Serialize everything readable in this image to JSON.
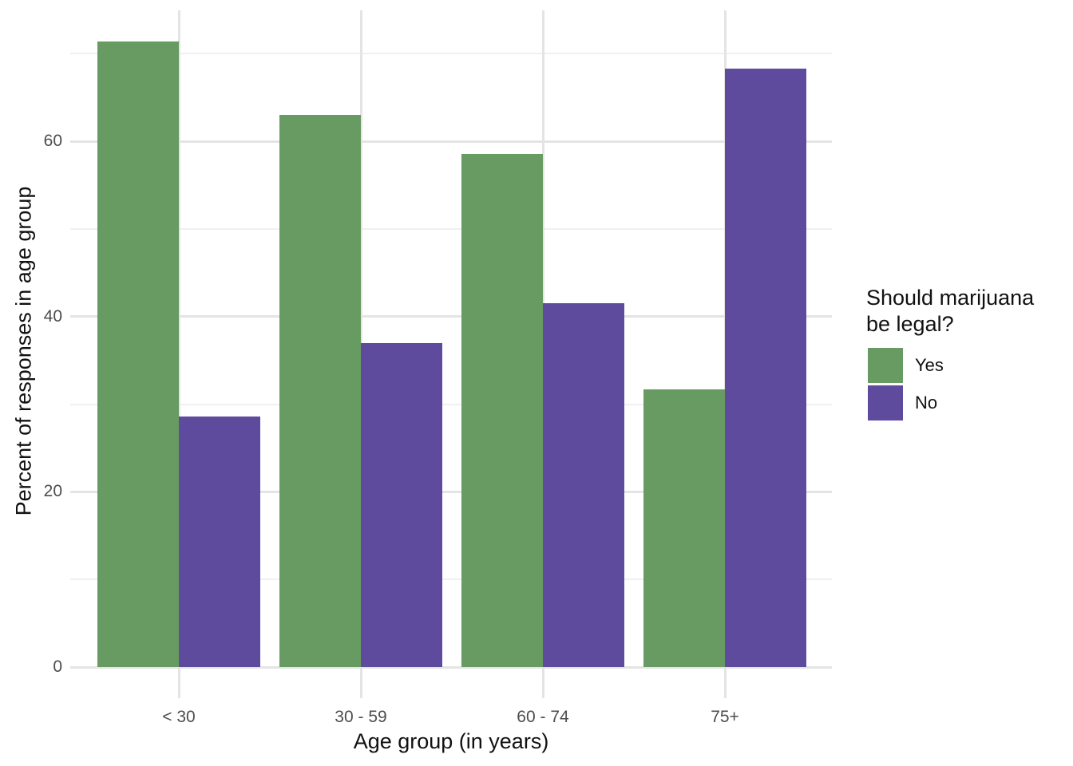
{
  "figure": {
    "background": "#ffffff",
    "legend": {
      "title_line1": "Should marijuana",
      "title_line2": "be legal?"
    }
  },
  "chart_data": {
    "type": "bar",
    "bar_grouping": "dodged",
    "title": "",
    "xlabel": "Age group (in years)",
    "ylabel": "Percent of responses in age group",
    "categories": [
      "< 30",
      "30 - 59",
      "60 - 74",
      "75+"
    ],
    "series": [
      {
        "name": "Yes",
        "color": "#689b62",
        "values": [
          71.4,
          63.0,
          58.5,
          31.7
        ]
      },
      {
        "name": "No",
        "color": "#5f4b9e",
        "values": [
          28.6,
          37.0,
          41.5,
          68.3
        ]
      }
    ],
    "ylim": [
      0,
      75
    ],
    "y_major_ticks": [
      0,
      20,
      40,
      60
    ],
    "y_minor_ticks": [
      10,
      30,
      50,
      70
    ],
    "grid": "on",
    "legend_position": "right",
    "legend_title": "Should marijuana be legal?"
  },
  "colors": {
    "yes_green": "#689b62",
    "no_purple": "#5f4b9e",
    "grid_major": "#e4e4e4",
    "grid_minor": "#f0f0f0",
    "tick_label": "#4d4d4d",
    "title_text": "#111111"
  }
}
